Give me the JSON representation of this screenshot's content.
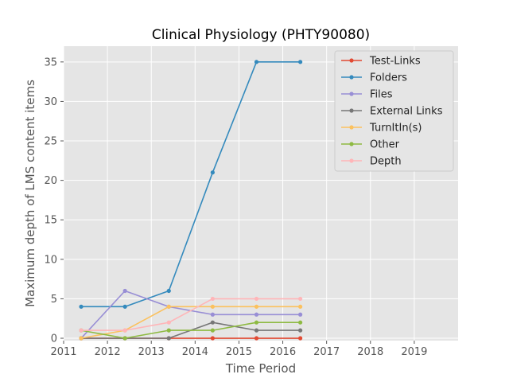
{
  "chart_data": {
    "type": "line",
    "title": "Clinical Physiology (PHTY90080)",
    "xlabel": "Time Period",
    "ylabel": "Maximum depth of LMS content items",
    "xlim": [
      2011,
      2020
    ],
    "ylim": [
      -0.3,
      37
    ],
    "x_ticks": [
      "2011",
      "2012",
      "2013",
      "2014",
      "2015",
      "2016",
      "2017",
      "2018",
      "2019"
    ],
    "y_ticks": [
      "0",
      "5",
      "10",
      "15",
      "20",
      "25",
      "30",
      "35"
    ],
    "grid": true,
    "legend_position": "top-right",
    "x": [
      2011.4,
      2012.4,
      2013.4,
      2014.4,
      2015.4,
      2016.4
    ],
    "series": [
      {
        "name": "Test-Links",
        "color": "#e24a33",
        "values": [
          0,
          0,
          0,
          0,
          0,
          0
        ]
      },
      {
        "name": "Folders",
        "color": "#348abd",
        "values": [
          4,
          4,
          6,
          21,
          35,
          35
        ]
      },
      {
        "name": "Files",
        "color": "#988ed5",
        "values": [
          0,
          6,
          4,
          3,
          3,
          3
        ]
      },
      {
        "name": "External Links",
        "color": "#777777",
        "values": [
          0,
          0,
          0,
          2,
          1,
          1
        ]
      },
      {
        "name": "TurnItIn(s)",
        "color": "#fbc15e",
        "values": [
          0,
          1,
          4,
          4,
          4,
          4
        ]
      },
      {
        "name": "Other",
        "color": "#8eba42",
        "values": [
          1,
          0,
          1,
          1,
          2,
          2
        ]
      },
      {
        "name": "Depth",
        "color": "#ffb5b8",
        "values": [
          1,
          1,
          2,
          5,
          5,
          5
        ]
      }
    ]
  }
}
